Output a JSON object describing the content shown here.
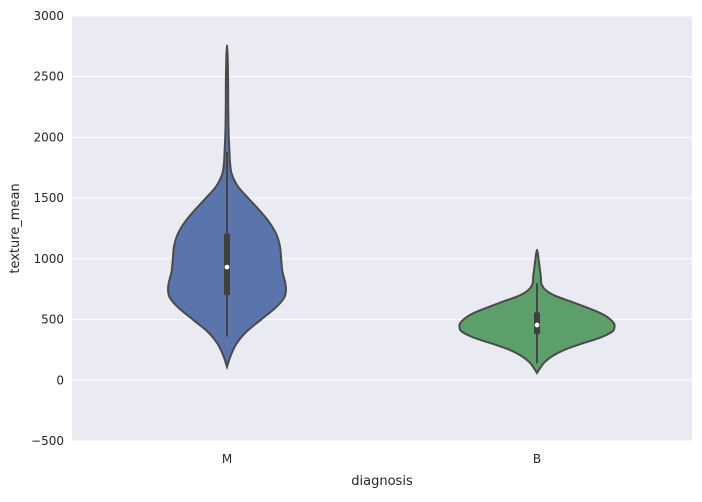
{
  "chart_data": {
    "type": "violin",
    "xlabel": "diagnosis",
    "ylabel": "texture_mean",
    "categories": [
      "M",
      "B"
    ],
    "ylim": [
      -500,
      3000
    ],
    "yticks": [
      -500,
      0,
      500,
      1000,
      1500,
      2000,
      2500,
      3000
    ],
    "grid": true,
    "background": "#eaeaf2",
    "gridColor": "#ffffff",
    "violins": [
      {
        "category": "M",
        "color": "#5975ab",
        "median": 932,
        "q1": 700,
        "q3": 1210,
        "whisker_low": 360,
        "whisker_high": 1880,
        "min": 110,
        "max": 2750,
        "max_half_width": 0.38,
        "density_profile": [
          [
            110,
            0.0
          ],
          [
            200,
            0.06
          ],
          [
            300,
            0.16
          ],
          [
            400,
            0.33
          ],
          [
            500,
            0.58
          ],
          [
            600,
            0.83
          ],
          [
            680,
            0.97
          ],
          [
            740,
            1.0
          ],
          [
            800,
            0.99
          ],
          [
            900,
            0.94
          ],
          [
            1000,
            0.92
          ],
          [
            1100,
            0.9
          ],
          [
            1200,
            0.84
          ],
          [
            1300,
            0.72
          ],
          [
            1400,
            0.55
          ],
          [
            1500,
            0.36
          ],
          [
            1600,
            0.18
          ],
          [
            1700,
            0.08
          ],
          [
            1800,
            0.05
          ],
          [
            1900,
            0.04
          ],
          [
            2000,
            0.03
          ],
          [
            2100,
            0.025
          ],
          [
            2200,
            0.022
          ],
          [
            2300,
            0.02
          ],
          [
            2400,
            0.02
          ],
          [
            2500,
            0.018
          ],
          [
            2600,
            0.014
          ],
          [
            2700,
            0.008
          ],
          [
            2750,
            0.0
          ]
        ]
      },
      {
        "category": "B",
        "color": "#5d9f6b",
        "median": 455,
        "q1": 380,
        "q3": 560,
        "whisker_low": 140,
        "whisker_high": 800,
        "min": 60,
        "max": 1070,
        "max_half_width": 0.5,
        "density_profile": [
          [
            60,
            0.0
          ],
          [
            100,
            0.04
          ],
          [
            150,
            0.1
          ],
          [
            200,
            0.2
          ],
          [
            250,
            0.35
          ],
          [
            300,
            0.57
          ],
          [
            350,
            0.81
          ],
          [
            400,
            0.97
          ],
          [
            440,
            1.0
          ],
          [
            480,
            0.98
          ],
          [
            540,
            0.86
          ],
          [
            600,
            0.64
          ],
          [
            650,
            0.43
          ],
          [
            700,
            0.22
          ],
          [
            750,
            0.1
          ],
          [
            800,
            0.055
          ],
          [
            850,
            0.05
          ],
          [
            900,
            0.04
          ],
          [
            950,
            0.03
          ],
          [
            1000,
            0.02
          ],
          [
            1050,
            0.01
          ],
          [
            1070,
            0.0
          ]
        ]
      }
    ]
  }
}
